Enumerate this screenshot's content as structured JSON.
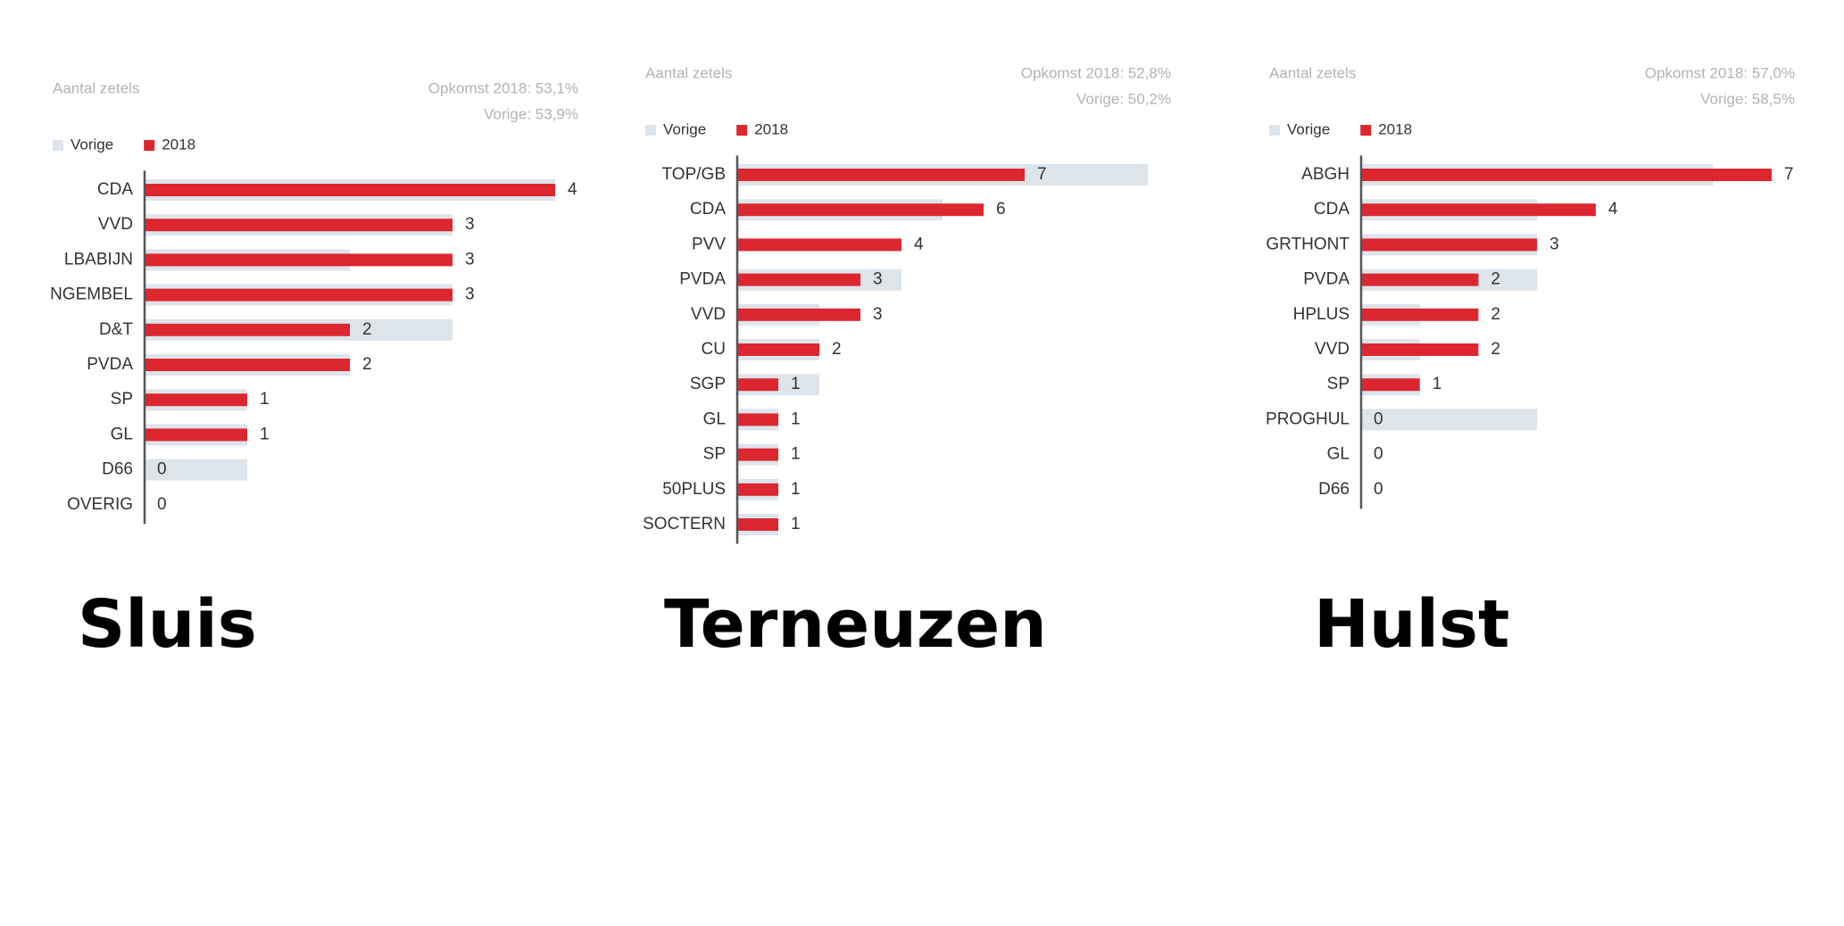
{
  "chart_data": [
    {
      "type": "bar",
      "orientation": "horizontal",
      "title": "Sluis",
      "subtitle": "Aantal zetels",
      "annotations": [
        "Opkomst 2018: 53,1%",
        "Vorige: 53,9%"
      ],
      "categories": [
        "CDA",
        "VVD",
        "LBABIJN",
        "NGEMBEL",
        "D&T",
        "PVDA",
        "SP",
        "GL",
        "D66",
        "OVERIG"
      ],
      "series": [
        {
          "name": "Vorige",
          "color": "#dde4ea",
          "data_labels": false,
          "values": [
            4,
            3,
            2,
            3,
            3,
            2,
            1,
            1,
            1,
            0
          ]
        },
        {
          "name": "2018",
          "color": "#dc2630",
          "data_labels": true,
          "values": [
            4,
            3,
            3,
            3,
            2,
            2,
            1,
            1,
            0,
            0
          ]
        }
      ],
      "xlim": [
        0,
        4
      ]
    },
    {
      "type": "bar",
      "orientation": "horizontal",
      "title": "Terneuzen",
      "subtitle": "Aantal zetels",
      "annotations": [
        "Opkomst 2018: 52,8%",
        "Vorige: 50,2%"
      ],
      "categories": [
        "TOP/GB",
        "CDA",
        "PVV",
        "PVDA",
        "VVD",
        "CU",
        "SGP",
        "GL",
        "SP",
        "50PLUS",
        "SOCTERN"
      ],
      "series": [
        {
          "name": "Vorige",
          "color": "#dde4ea",
          "data_labels": false,
          "values": [
            10,
            5,
            0,
            4,
            2,
            2,
            2,
            1,
            1,
            1,
            1
          ]
        },
        {
          "name": "2018",
          "color": "#dc2630",
          "data_labels": true,
          "values": [
            7,
            6,
            4,
            3,
            3,
            2,
            1,
            1,
            1,
            1,
            1
          ]
        }
      ],
      "xlim": [
        0,
        10
      ]
    },
    {
      "type": "bar",
      "orientation": "horizontal",
      "title": "Hulst",
      "subtitle": "Aantal zetels",
      "annotations": [
        "Opkomst 2018: 57,0%",
        "Vorige: 58,5%"
      ],
      "categories": [
        "ABGH",
        "CDA",
        "GRTHONT",
        "PVDA",
        "HPLUS",
        "VVD",
        "SP",
        "PROGHUL",
        "GL",
        "D66"
      ],
      "series": [
        {
          "name": "Vorige",
          "color": "#dde4ea",
          "data_labels": false,
          "values": [
            6,
            3,
            3,
            3,
            1,
            1,
            1,
            3,
            0,
            0
          ]
        },
        {
          "name": "2018",
          "color": "#dc2630",
          "data_labels": true,
          "values": [
            7,
            4,
            3,
            2,
            2,
            2,
            1,
            0,
            0,
            0
          ]
        }
      ],
      "xlim": [
        0,
        7
      ]
    }
  ]
}
